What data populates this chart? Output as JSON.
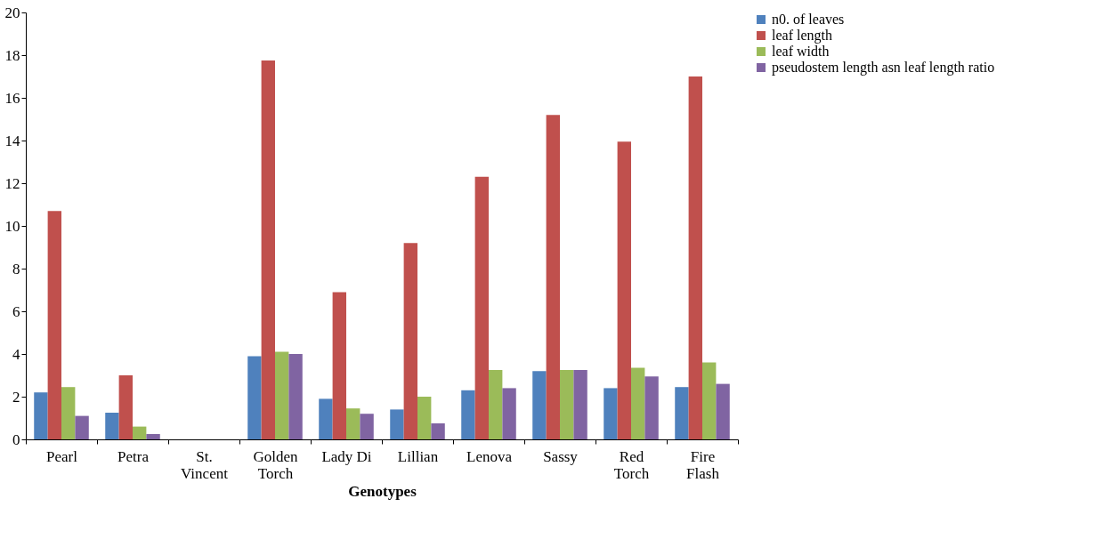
{
  "chart_data": {
    "type": "bar",
    "xlabel": "Genotypes",
    "categories": [
      "Pearl",
      "Petra",
      "St. Vincent",
      "Golden Torch",
      "Lady Di",
      "Lillian",
      "Lenova",
      "Sassy",
      "Red Torch",
      "Fire Flash"
    ],
    "series": [
      {
        "name": "n0. of leaves",
        "color": "#4f81bd",
        "values": [
          2.2,
          1.25,
          0,
          3.9,
          1.9,
          1.4,
          2.3,
          3.2,
          2.4,
          2.45
        ]
      },
      {
        "name": "leaf length",
        "color": "#c0504d",
        "values": [
          10.7,
          3.0,
          0,
          17.75,
          6.9,
          9.2,
          12.3,
          15.2,
          13.95,
          17.0
        ]
      },
      {
        "name": "leaf width",
        "color": "#9bbb59",
        "values": [
          2.45,
          0.6,
          0,
          4.1,
          1.45,
          2.0,
          3.25,
          3.25,
          3.35,
          3.6
        ]
      },
      {
        "name": "pseudostem length asn leaf length ratio",
        "color": "#8064a2",
        "values": [
          1.1,
          0.25,
          0,
          4.0,
          1.2,
          0.75,
          2.4,
          3.25,
          2.95,
          2.6
        ]
      }
    ],
    "ylim": [
      0,
      20
    ],
    "yticks": [
      0,
      2,
      4,
      6,
      8,
      10,
      12,
      14,
      16,
      18,
      20
    ],
    "grid": false,
    "legend": "right"
  }
}
